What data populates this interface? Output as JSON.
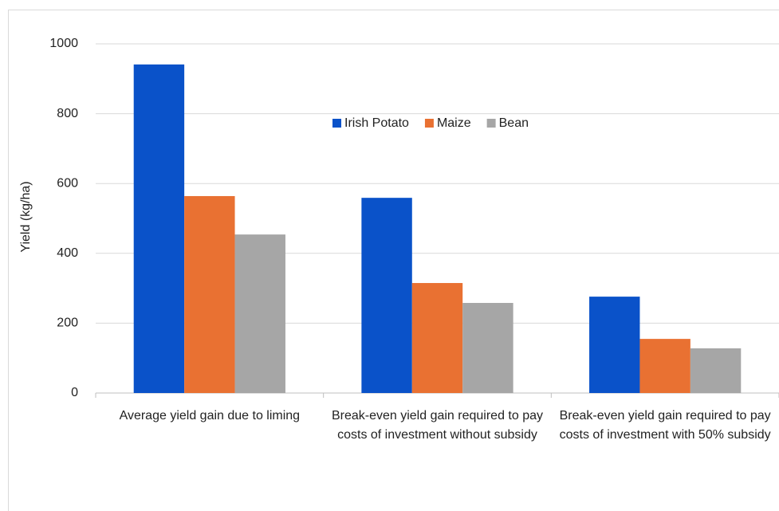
{
  "chart_data": {
    "type": "bar",
    "y_label": "Yield (kg/ha)",
    "categories": [
      "Average yield gain due to liming",
      "Break-even yield gain required to pay costs of investment without subsidy",
      "Break-even yield gain required to pay costs of investment with 50% subsidy"
    ],
    "series": [
      {
        "name": "Irish Potato",
        "color": "#0a52c9",
        "values": [
          941,
          559,
          276
        ]
      },
      {
        "name": "Maize",
        "color": "#e97132",
        "values": [
          564,
          315,
          155
        ]
      },
      {
        "name": "Bean",
        "color": "#a6a6a6",
        "values": [
          454,
          258,
          128
        ]
      }
    ],
    "ylim": [
      0,
      1000
    ],
    "yticks": [
      0,
      200,
      400,
      600,
      800,
      1000
    ],
    "grid": true
  }
}
